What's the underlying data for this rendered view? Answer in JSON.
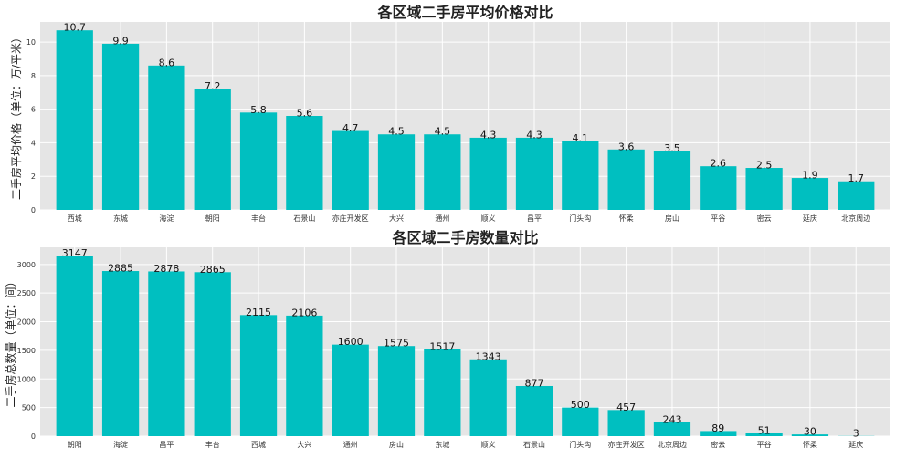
{
  "chart_data": [
    {
      "type": "bar",
      "title": "各区域二手房平均价格对比",
      "ylabel": "二手房平均价格（单位：万/平米）",
      "xlabel": "",
      "categories": [
        "西城",
        "东城",
        "海淀",
        "朝阳",
        "丰台",
        "石景山",
        "亦庄开发区",
        "大兴",
        "通州",
        "顺义",
        "昌平",
        "门头沟",
        "怀柔",
        "房山",
        "平谷",
        "密云",
        "延庆",
        "北京周边"
      ],
      "values": [
        10.7,
        9.9,
        8.6,
        7.2,
        5.8,
        5.6,
        4.7,
        4.5,
        4.5,
        4.3,
        4.3,
        4.1,
        3.6,
        3.5,
        2.6,
        2.5,
        1.9,
        1.7
      ],
      "value_labels": [
        "10.7",
        "9.9",
        "8.6",
        "7.2",
        "5.8",
        "5.6",
        "4.7",
        "4.5",
        "4.5",
        "4.3",
        "4.3",
        "4.1",
        "3.6",
        "3.5",
        "2.6",
        "2.5",
        "1.9",
        "1.7"
      ],
      "ylim": [
        0,
        11.2
      ],
      "yticks": [
        0,
        2,
        4,
        6,
        8,
        10
      ],
      "ytick_labels": [
        "0",
        "2",
        "4",
        "6",
        "8",
        "10"
      ],
      "grid": true,
      "bar_color": "#00bfc0",
      "background": "#e5e5e5"
    },
    {
      "type": "bar",
      "title": "各区域二手房数量对比",
      "ylabel": "二手房总数量（单位：间）",
      "xlabel": "",
      "categories": [
        "朝阳",
        "海淀",
        "昌平",
        "丰台",
        "西城",
        "大兴",
        "通州",
        "房山",
        "东城",
        "顺义",
        "石景山",
        "门头沟",
        "亦庄开发区",
        "北京周边",
        "密云",
        "平谷",
        "怀柔",
        "延庆"
      ],
      "values": [
        3147,
        2885,
        2878,
        2865,
        2115,
        2106,
        1600,
        1575,
        1517,
        1343,
        877,
        500,
        457,
        243,
        89,
        51,
        30,
        3
      ],
      "value_labels": [
        "3147",
        "2885",
        "2878",
        "2865",
        "2115",
        "2106",
        "1600",
        "1575",
        "1517",
        "1343",
        "877",
        "500",
        "457",
        "243",
        "89",
        "51",
        "30",
        "3"
      ],
      "ylim": [
        0,
        3300
      ],
      "yticks": [
        0,
        500,
        1000,
        1500,
        2000,
        2500,
        3000
      ],
      "ytick_labels": [
        "0",
        "500",
        "1000",
        "1500",
        "2000",
        "2500",
        "3000"
      ],
      "grid": true,
      "bar_color": "#00bfc0",
      "background": "#e5e5e5"
    }
  ]
}
